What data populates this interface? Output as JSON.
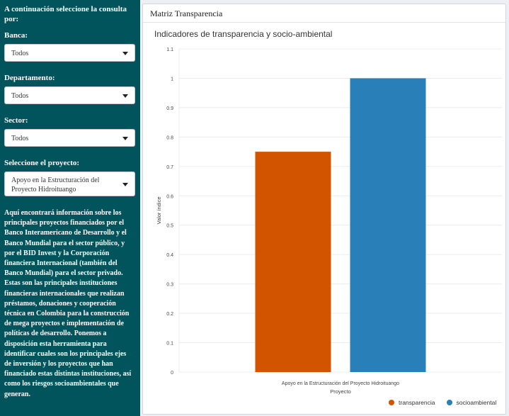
{
  "sidebar": {
    "title": "A continuación seleccione la consulta por:",
    "filters": [
      {
        "label": "Banca:",
        "value": "Todos"
      },
      {
        "label": "Departamento:",
        "value": "Todos"
      },
      {
        "label": "Sector:",
        "value": "Todos"
      }
    ],
    "project": {
      "label": "Seleccione el proyecto:",
      "value": "Apoyo en la Estructuración del Proyecto Hidroituango"
    },
    "description": "Aquí encontrará información sobre los principales proyectos financiados por el Banco Interamericano de Desarrollo y el Banco Mundial para el sector público, y por el BID Invest y la Corporación financiera Internacional (también del Banco Mundial) para el sector privado. Estas son las principales instituciones financieras internacionales que realizan préstamos, donaciones y cooperación técnica en Colombia para la construcción de mega proyectos e implementación de políticas de desarrollo. Ponemos a disposición esta herramienta para identificar cuales son los principales ejes de inversión y los proyectos que han financiado estas distintas instituciones, así como los riesgos socioambientales que generan."
  },
  "panel": {
    "title": "Matriz Transparencia"
  },
  "chart_data": {
    "type": "bar",
    "title": "Indicadores de transparencia y socio-ambiental",
    "xlabel": "Proyecto",
    "ylabel": "Valor índice",
    "categories": [
      "Apoyo en la Estructuración del Proyecto Hidroituango"
    ],
    "series": [
      {
        "name": "transparencia",
        "values": [
          0.75
        ],
        "color": "#d35400"
      },
      {
        "name": "socioambiental",
        "values": [
          1.0
        ],
        "color": "#2980b9"
      }
    ],
    "ylim": [
      0,
      1.1
    ],
    "yticks": [
      "0",
      "0.1",
      "0.2",
      "0.3",
      "0.4",
      "0.5",
      "0.6",
      "0.7",
      "0.8",
      "0.9",
      "1",
      "1.1"
    ],
    "grid": true,
    "legend": "bottom-right"
  }
}
